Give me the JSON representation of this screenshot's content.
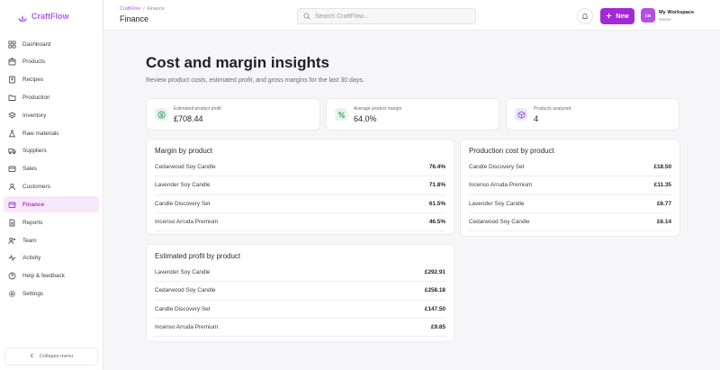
{
  "app": {
    "name": "CraftFlow"
  },
  "sidebar": {
    "items": [
      {
        "label": "Dashboard",
        "icon": "grid-icon"
      },
      {
        "label": "Products",
        "icon": "box-icon"
      },
      {
        "label": "Recipes",
        "icon": "book-icon"
      },
      {
        "label": "Production",
        "icon": "folder-icon"
      },
      {
        "label": "Inventory",
        "icon": "layers-icon"
      },
      {
        "label": "Raw materials",
        "icon": "flask-icon"
      },
      {
        "label": "Suppliers",
        "icon": "truck-icon"
      },
      {
        "label": "Sales",
        "icon": "cart-icon"
      },
      {
        "label": "Customers",
        "icon": "users-icon"
      },
      {
        "label": "Finance",
        "icon": "wallet-icon",
        "active": true
      },
      {
        "label": "Reports",
        "icon": "document-icon"
      },
      {
        "label": "Team",
        "icon": "team-icon"
      },
      {
        "label": "Activity",
        "icon": "activity-icon"
      },
      {
        "label": "Help & feedback",
        "icon": "help-icon"
      },
      {
        "label": "Settings",
        "icon": "gear-icon"
      }
    ],
    "collapse_label": "Collapse menu"
  },
  "header": {
    "breadcrumb": [
      "CraftFlow",
      "/",
      "Finance"
    ],
    "title": "Finance",
    "search_placeholder": "Search CraftFlow...",
    "new_label": "New",
    "workspace": {
      "initials": "CB",
      "name": "My Workspace",
      "role": "Owner"
    }
  },
  "page": {
    "title": "Cost and margin insights",
    "subtitle": "Review product costs, estimated profit, and gross margins for the last 30 days."
  },
  "stats": [
    {
      "label": "Estimated product profit",
      "value": "£708.44",
      "icon": "dollar-icon",
      "color": "#e5f5ea",
      "icon_color": "#2e8b57"
    },
    {
      "label": "Average product margin",
      "value": "64.0%",
      "icon": "percent-icon",
      "color": "#e5f5ea",
      "icon_color": "#2e8b57"
    },
    {
      "label": "Products analyzed",
      "value": "4",
      "icon": "box-icon",
      "color": "#efe6fb",
      "icon_color": "#8a4fd6"
    }
  ],
  "margin_by_product": {
    "title": "Margin by product",
    "rows": [
      {
        "name": "Cedarwood Soy Candle",
        "value": "76.4%"
      },
      {
        "name": "Lavender Soy Candle",
        "value": "71.8%"
      },
      {
        "name": "Candle Discovery Set",
        "value": "61.5%"
      },
      {
        "name": "Incenso Arruda Premium",
        "value": "46.5%"
      }
    ]
  },
  "production_cost": {
    "title": "Production cost by product",
    "rows": [
      {
        "name": "Candle Discovery Set",
        "value": "£18.50"
      },
      {
        "name": "Incenso Arruda Premium",
        "value": "£11.35"
      },
      {
        "name": "Lavender Soy Candle",
        "value": "£6.77"
      },
      {
        "name": "Cedarwood Soy Candle",
        "value": "£6.14"
      }
    ]
  },
  "estimated_profit": {
    "title": "Estimated profit by product",
    "rows": [
      {
        "name": "Lavender Soy Candle",
        "value": "£292.91"
      },
      {
        "name": "Cedarwood Soy Candle",
        "value": "£258.18"
      },
      {
        "name": "Candle Discovery Set",
        "value": "£147.50"
      },
      {
        "name": "Incenso Arruda Premium",
        "value": "£9.85"
      }
    ]
  },
  "colors": {
    "accent": "#a12ad6",
    "brand": "#b05cf0",
    "active_bg": "#f8e8fb"
  }
}
